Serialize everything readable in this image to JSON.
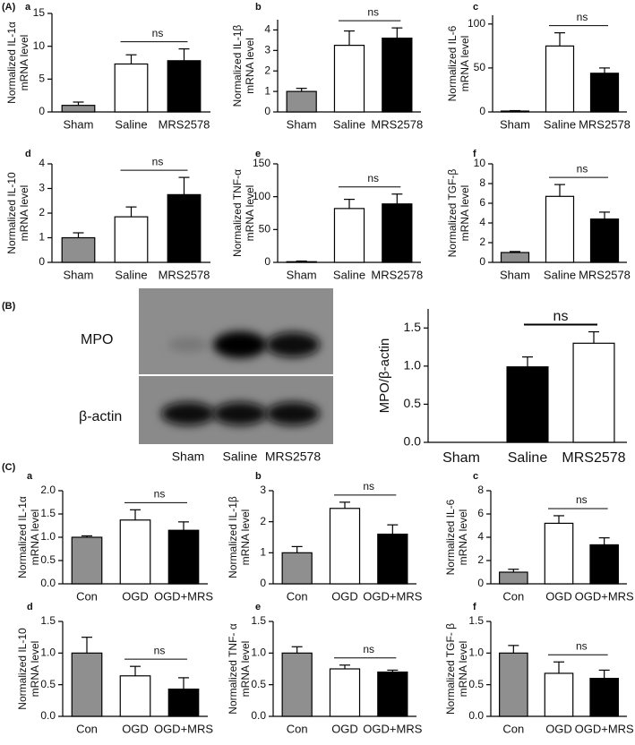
{
  "panels": [
    "(A)",
    "(B)",
    "(C)"
  ],
  "blot": {
    "rows": [
      "MPO",
      "β-actin"
    ],
    "lanes": [
      "Sham",
      "Saline",
      "MRS2578"
    ]
  },
  "chart_data": [
    {
      "type": "bar",
      "label": "a",
      "ylabel": [
        "Normalized IL-1α",
        "mRNA level"
      ],
      "categories": [
        "Sham",
        "Saline",
        "MRS2578"
      ],
      "values": [
        1.0,
        7.3,
        7.8
      ],
      "errors": [
        0.5,
        1.4,
        1.8
      ],
      "colors": [
        "#8f8f8f",
        "#ffffff",
        "#000000"
      ],
      "ylim": [
        0,
        15
      ],
      "yticks": [
        0,
        5,
        10,
        15
      ],
      "annotation": "ns"
    },
    {
      "type": "bar",
      "label": "b",
      "ylabel": [
        "Normalized IL-1β",
        "mRNA level"
      ],
      "categories": [
        "Sham",
        "Saline",
        "MRS2578"
      ],
      "values": [
        1.0,
        3.25,
        3.6
      ],
      "errors": [
        0.15,
        0.7,
        0.5
      ],
      "colors": [
        "#8f8f8f",
        "#ffffff",
        "#000000"
      ],
      "ylim": [
        0,
        4.5
      ],
      "yticks": [
        0,
        1,
        2,
        3,
        4
      ],
      "annotation": "ns"
    },
    {
      "type": "bar",
      "label": "c",
      "ylabel": [
        "Normalized IL-6",
        "mRNA level"
      ],
      "categories": [
        "Sham",
        "Saline",
        "MRS2578"
      ],
      "values": [
        1,
        75,
        44
      ],
      "errors": [
        0.5,
        15,
        6
      ],
      "colors": [
        "#8f8f8f",
        "#ffffff",
        "#000000"
      ],
      "ylim": [
        0,
        110
      ],
      "yticks": [
        0,
        50,
        100
      ],
      "annotation": "ns"
    },
    {
      "type": "bar",
      "label": "d",
      "ylabel": [
        "Normalized IL-10",
        "mRNA level"
      ],
      "categories": [
        "Sham",
        "Saline",
        "MRS2578"
      ],
      "values": [
        1.0,
        1.85,
        2.75
      ],
      "errors": [
        0.2,
        0.4,
        0.7
      ],
      "colors": [
        "#8f8f8f",
        "#ffffff",
        "#000000"
      ],
      "ylim": [
        0,
        4
      ],
      "yticks": [
        0,
        1,
        2,
        3,
        4
      ],
      "annotation": "ns"
    },
    {
      "type": "bar",
      "label": "e",
      "ylabel": [
        "Normalized TNF-α",
        "mRNA level"
      ],
      "categories": [
        "Sham",
        "Saline",
        "MRS2578"
      ],
      "values": [
        1,
        82,
        89
      ],
      "errors": [
        1,
        14,
        15
      ],
      "colors": [
        "#8f8f8f",
        "#ffffff",
        "#000000"
      ],
      "ylim": [
        0,
        150
      ],
      "yticks": [
        0,
        50,
        100,
        150
      ],
      "annotation": "ns"
    },
    {
      "type": "bar",
      "label": "f",
      "ylabel": [
        "Normalized TGF-β",
        "mRNA level"
      ],
      "categories": [
        "Sham",
        "Saline",
        "MRS2578"
      ],
      "values": [
        1.0,
        6.7,
        4.4
      ],
      "errors": [
        0.1,
        1.2,
        0.7
      ],
      "colors": [
        "#8f8f8f",
        "#ffffff",
        "#000000"
      ],
      "ylim": [
        0,
        10
      ],
      "yticks": [
        0,
        2,
        4,
        6,
        8,
        10
      ],
      "annotation": "ns"
    },
    {
      "type": "bar",
      "ylabel": [
        "MPO/β-actin"
      ],
      "categories": [
        "Sham",
        "Saline",
        "MRS2578"
      ],
      "values": [
        0,
        0.99,
        1.3
      ],
      "errors": [
        0,
        0.13,
        0.15
      ],
      "colors": [
        "#8f8f8f",
        "#000000",
        "#ffffff"
      ],
      "ylim": [
        0,
        1.75
      ],
      "yticks": [
        {
          "value": 0,
          "label": "0.0"
        },
        0.5,
        {
          "value": 1,
          "label": "1.0"
        },
        1.5
      ],
      "annotation": "ns"
    },
    {
      "type": "bar",
      "label": "a",
      "ylabel": [
        "Normalized IL-1α",
        "mRNA level"
      ],
      "categories": [
        "Con",
        "OGD",
        "OGD+MRS"
      ],
      "values": [
        1.0,
        1.37,
        1.15
      ],
      "errors": [
        0.03,
        0.22,
        0.18
      ],
      "colors": [
        "#8f8f8f",
        "#ffffff",
        "#000000"
      ],
      "ylim": [
        0,
        2
      ],
      "yticks": [
        {
          "value": 0,
          "label": "0.0"
        },
        0.5,
        {
          "value": 1,
          "label": "1.0"
        },
        1.5,
        {
          "value": 2,
          "label": "2.0"
        }
      ],
      "annotation": "ns"
    },
    {
      "type": "bar",
      "label": "b",
      "ylabel": [
        "Normalized IL-1β",
        "mRNA level"
      ],
      "categories": [
        "Con",
        "OGD",
        "OGD+MRS"
      ],
      "values": [
        1.0,
        2.43,
        1.6
      ],
      "errors": [
        0.2,
        0.2,
        0.3
      ],
      "colors": [
        "#8f8f8f",
        "#ffffff",
        "#000000"
      ],
      "ylim": [
        0,
        3
      ],
      "yticks": [
        0,
        1,
        2,
        3
      ],
      "annotation": "ns"
    },
    {
      "type": "bar",
      "label": "c",
      "ylabel": [
        "Normalized IL-6",
        "mRNA level"
      ],
      "categories": [
        "Con",
        "OGD",
        "OGD+MRS"
      ],
      "values": [
        1.0,
        5.2,
        3.35
      ],
      "errors": [
        0.25,
        0.65,
        0.6
      ],
      "colors": [
        "#8f8f8f",
        "#ffffff",
        "#000000"
      ],
      "ylim": [
        0,
        8
      ],
      "yticks": [
        0,
        2,
        4,
        6,
        8
      ],
      "annotation": "ns"
    },
    {
      "type": "bar",
      "label": "d",
      "ylabel": [
        "Normalized IL-10",
        "mRNA level"
      ],
      "categories": [
        "Con",
        "OGD",
        "OGD+MRS"
      ],
      "values": [
        1.0,
        0.64,
        0.43
      ],
      "errors": [
        0.25,
        0.15,
        0.18
      ],
      "colors": [
        "#8f8f8f",
        "#ffffff",
        "#000000"
      ],
      "ylim": [
        0,
        1.5
      ],
      "yticks": [
        {
          "value": 0,
          "label": "0.0"
        },
        0.5,
        {
          "value": 1,
          "label": "1.0"
        },
        1.5
      ],
      "annotation": "ns"
    },
    {
      "type": "bar",
      "label": "e",
      "ylabel": [
        "Normalized TNF- α",
        "mRNA level"
      ],
      "categories": [
        "Con",
        "OGD",
        "OGD+MRS"
      ],
      "values": [
        1.0,
        0.75,
        0.7
      ],
      "errors": [
        0.1,
        0.06,
        0.03
      ],
      "colors": [
        "#8f8f8f",
        "#ffffff",
        "#000000"
      ],
      "ylim": [
        0,
        1.5
      ],
      "yticks": [
        {
          "value": 0,
          "label": "0.0"
        },
        0.5,
        {
          "value": 1,
          "label": "1.0"
        },
        1.5
      ],
      "annotation": "ns"
    },
    {
      "type": "bar",
      "label": "f",
      "ylabel": [
        "Normalized TGF- β",
        "mRNA level"
      ],
      "categories": [
        "Con",
        "OGD",
        "OGD+MRS"
      ],
      "values": [
        1.0,
        0.68,
        0.6
      ],
      "errors": [
        0.12,
        0.18,
        0.13
      ],
      "colors": [
        "#8f8f8f",
        "#ffffff",
        "#000000"
      ],
      "ylim": [
        0,
        1.5
      ],
      "yticks": [
        {
          "value": 0,
          "label": "0.0"
        },
        0.5,
        {
          "value": 1,
          "label": "1.0"
        },
        1.5
      ],
      "annotation": "ns"
    }
  ]
}
